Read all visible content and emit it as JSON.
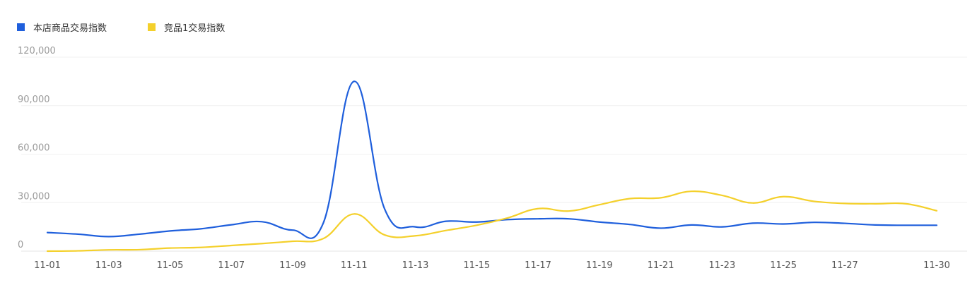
{
  "chart_data": {
    "type": "line",
    "title": "",
    "xlabel": "",
    "ylabel": "",
    "ylim": [
      0,
      120000
    ],
    "y_ticks": [
      "0",
      "30,000",
      "60,000",
      "90,000",
      "120,000"
    ],
    "grid": true,
    "legend_position": "top-left",
    "x": [
      "11-01",
      "11-02",
      "11-03",
      "11-04",
      "11-05",
      "11-06",
      "11-07",
      "11-08",
      "11-09",
      "11-10",
      "11-11",
      "11-12",
      "11-13",
      "11-14",
      "11-15",
      "11-16",
      "11-17",
      "11-18",
      "11-19",
      "11-20",
      "11-21",
      "11-22",
      "11-23",
      "11-24",
      "11-25",
      "11-26",
      "11-27",
      "11-28",
      "11-29",
      "11-30"
    ],
    "x_tick_labels": [
      "11-01",
      "11-03",
      "11-05",
      "11-07",
      "11-09",
      "11-11",
      "11-13",
      "11-15",
      "11-17",
      "11-19",
      "11-21",
      "11-23",
      "11-25",
      "11-27",
      "11-30"
    ],
    "series": [
      {
        "name": "本店商品交易指数",
        "color": "#1f5fdc",
        "values": [
          11500,
          10500,
          9000,
          10500,
          12500,
          13800,
          16300,
          18200,
          13000,
          17500,
          105000,
          26000,
          15000,
          18500,
          18000,
          19500,
          20000,
          20000,
          18000,
          16500,
          14200,
          16200,
          15000,
          17300,
          16800,
          17800,
          17200,
          16200,
          16000,
          16000
        ]
      },
      {
        "name": "竞品1交易指数",
        "color": "#f4d02b",
        "values": [
          0,
          200,
          800,
          900,
          1900,
          2300,
          3500,
          4700,
          6100,
          7800,
          23000,
          10000,
          9500,
          12800,
          16000,
          20500,
          26300,
          24800,
          28700,
          32500,
          33000,
          37000,
          34500,
          29800,
          33700,
          30800,
          29500,
          29300,
          29300,
          25000
        ]
      }
    ]
  }
}
